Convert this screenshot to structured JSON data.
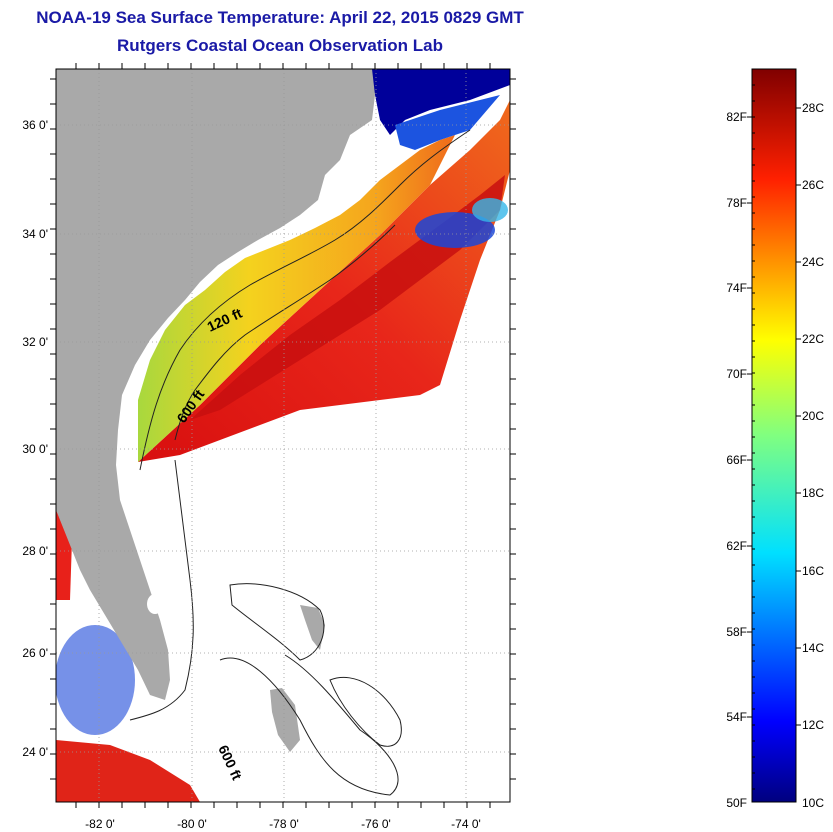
{
  "title": {
    "line1": "NOAA-19 Sea Surface Temperature:  April 22, 2015 0829 GMT",
    "line2": "Rutgers Coastal Ocean Observation Lab"
  },
  "map": {
    "lat_ticks": [
      "36 0'",
      "34 0'",
      "32 0'",
      "30 0'",
      "28 0'",
      "26 0'",
      "24 0'"
    ],
    "lon_ticks": [
      "-82 0'",
      "-80 0'",
      "-78 0'",
      "-76 0'",
      "-74 0'"
    ],
    "contour_labels": [
      "120 ft",
      "600 ft",
      "600 ft"
    ],
    "colors": {
      "land": "#a9a9a9",
      "warm": "#e8211a",
      "hot": "#c81010",
      "orange": "#f2781c",
      "yellow": "#f5d21e",
      "green": "#9ad44a",
      "cyan": "#36d1e0",
      "blue": "#1b47d8",
      "navy": "#00008f"
    }
  },
  "colorbar": {
    "fahrenheit": [
      "82F",
      "78F",
      "74F",
      "70F",
      "66F",
      "62F",
      "58F",
      "54F",
      "50F"
    ],
    "celsius": [
      "28C",
      "26C",
      "24C",
      "22C",
      "20C",
      "18C",
      "16C",
      "14C",
      "12C",
      "10C"
    ]
  }
}
